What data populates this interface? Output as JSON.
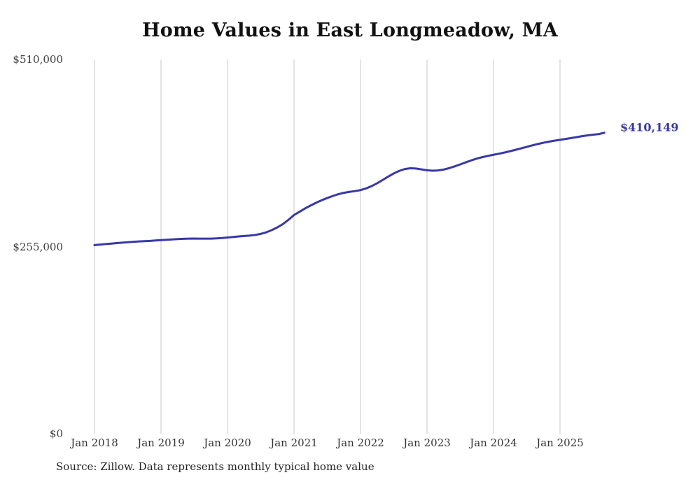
{
  "colors": {
    "line": "#3838aa",
    "grid": "#c9c9c9",
    "title_text": "#111111",
    "axis_text": "#3d3d3d",
    "end_label_text": "#3838aa"
  },
  "chart_data": {
    "type": "line",
    "title": "Home Values in East Longmeadow, MA",
    "series_name": "Typical home value",
    "unit": "USD",
    "start": "2018-01",
    "interval": "monthly",
    "values": [
      257000,
      257700,
      258400,
      259100,
      259800,
      260400,
      261000,
      261500,
      262000,
      262400,
      262800,
      263300,
      263800,
      264300,
      264800,
      265200,
      265600,
      265900,
      266000,
      265900,
      265800,
      265900,
      266200,
      266700,
      267400,
      268100,
      268800,
      269400,
      270000,
      270900,
      272300,
      274500,
      277500,
      281200,
      285700,
      291500,
      298000,
      302500,
      307000,
      311000,
      314800,
      318200,
      321200,
      324000,
      326400,
      328300,
      329600,
      330600,
      332000,
      334200,
      337400,
      341300,
      345800,
      350400,
      354700,
      358200,
      360700,
      361800,
      361400,
      360200,
      359000,
      358400,
      358800,
      360000,
      361900,
      364300,
      367000,
      369800,
      372500,
      374900,
      376900,
      378600,
      380100,
      381600,
      383200,
      385000,
      386900,
      388900,
      390900,
      392900,
      394800,
      396500,
      398000,
      399300,
      400500,
      401700,
      402900,
      404200,
      405500,
      406600,
      407500,
      408300,
      410149
    ],
    "final_value": 410149,
    "end_label": "$410,149",
    "ylim": [
      0,
      510000
    ],
    "y_ticks": [
      {
        "value": 0,
        "label": "$0"
      },
      {
        "value": 255000,
        "label": "$255,000"
      },
      {
        "value": 510000,
        "label": "$510,000"
      }
    ],
    "x_ticks": [
      {
        "month_index": 0,
        "label": "Jan 2018"
      },
      {
        "month_index": 12,
        "label": "Jan 2019"
      },
      {
        "month_index": 24,
        "label": "Jan 2020"
      },
      {
        "month_index": 36,
        "label": "Jan 2021"
      },
      {
        "month_index": 48,
        "label": "Jan 2022"
      },
      {
        "month_index": 60,
        "label": "Jan 2023"
      },
      {
        "month_index": 72,
        "label": "Jan 2024"
      },
      {
        "month_index": 84,
        "label": "Jan 2025"
      }
    ],
    "grid": "vertical-only",
    "legend": false,
    "source_note": "Source: Zillow. Data represents monthly typical home value"
  }
}
